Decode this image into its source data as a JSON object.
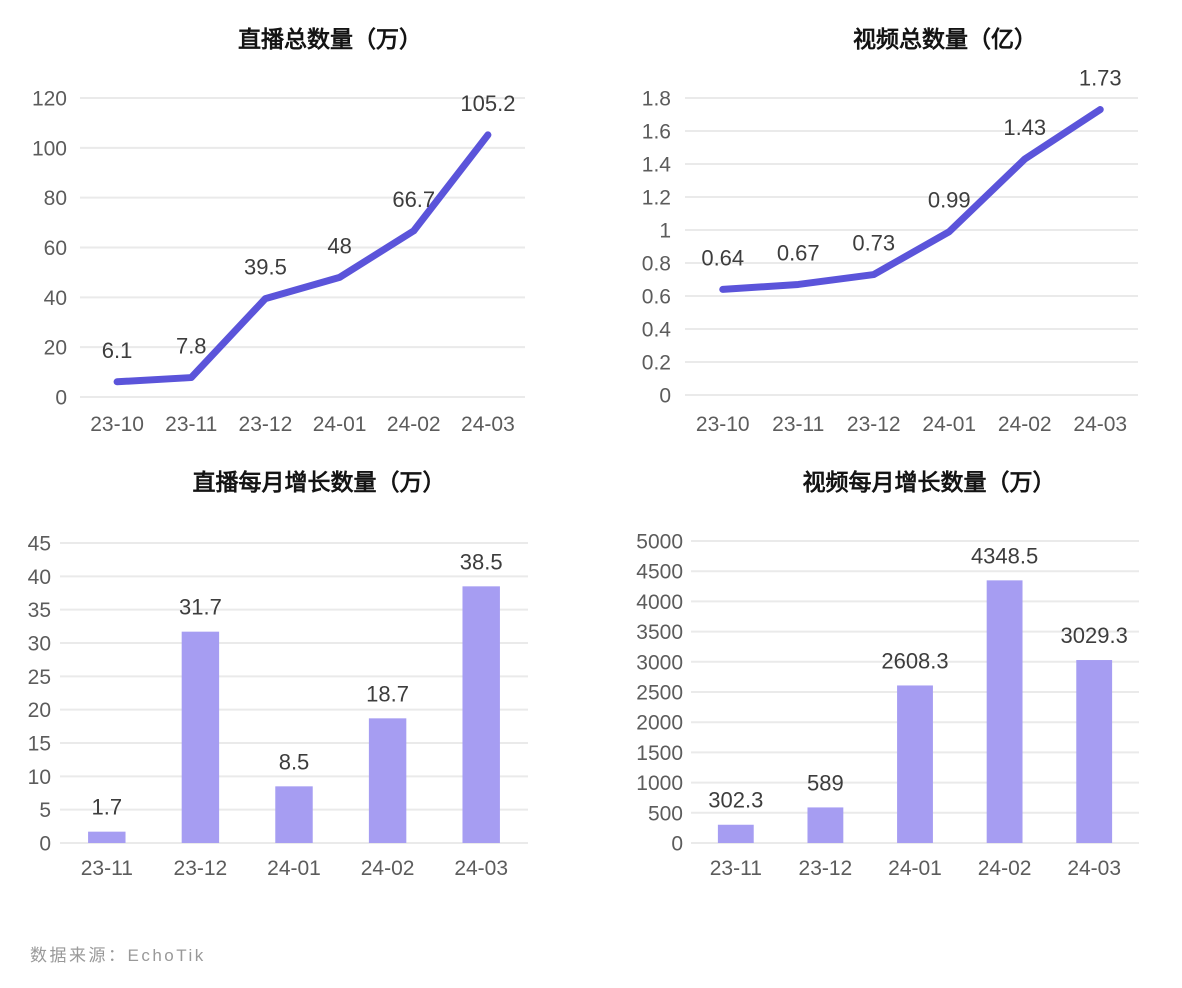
{
  "page": {
    "background": "#ffffff"
  },
  "colors": {
    "line_series": "#5B54DA",
    "bar_series": "#A69DF2",
    "gridline": "#EAEAEA",
    "tick_text": "#5C5C5C",
    "value_label_text": "#3D3D3D",
    "title_text": "#141414",
    "footer_text": "#999999"
  },
  "footer": {
    "text": "数据来源：EchoTik"
  },
  "chart_data": [
    {
      "type": "line",
      "title": "直播总数量（万）",
      "categories": [
        "23-10",
        "23-11",
        "23-12",
        "24-01",
        "24-02",
        "24-03"
      ],
      "values": [
        6.1,
        7.8,
        39.5,
        48,
        66.7,
        105.2
      ],
      "value_labels": [
        "6.1",
        "7.8",
        "39.5",
        "48",
        "66.7",
        "105.2"
      ],
      "xlabel": "",
      "ylabel": "",
      "ylim": [
        0,
        120
      ],
      "y_ticks": [
        "0",
        "20",
        "40",
        "60",
        "80",
        "100",
        "120"
      ],
      "grid": "horizontal",
      "legend": "none"
    },
    {
      "type": "line",
      "title": "视频总数量（亿）",
      "categories": [
        "23-10",
        "23-11",
        "23-12",
        "24-01",
        "24-02",
        "24-03"
      ],
      "values": [
        0.64,
        0.67,
        0.73,
        0.99,
        1.43,
        1.73
      ],
      "value_labels": [
        "0.64",
        "0.67",
        "0.73",
        "0.99",
        "1.43",
        "1.73"
      ],
      "xlabel": "",
      "ylabel": "",
      "ylim": [
        0,
        1.8
      ],
      "y_ticks": [
        "0",
        "0.2",
        "0.4",
        "0.6",
        "0.8",
        "1",
        "1.2",
        "1.4",
        "1.6",
        "1.8"
      ],
      "grid": "horizontal",
      "legend": "none"
    },
    {
      "type": "bar",
      "title": "直播每月增长数量（万）",
      "categories": [
        "23-11",
        "23-12",
        "24-01",
        "24-02",
        "24-03"
      ],
      "values": [
        1.7,
        31.7,
        8.5,
        18.7,
        38.5
      ],
      "value_labels": [
        "1.7",
        "31.7",
        "8.5",
        "18.7",
        "38.5"
      ],
      "xlabel": "",
      "ylabel": "",
      "ylim": [
        0,
        45
      ],
      "y_ticks": [
        "0",
        "5",
        "10",
        "15",
        "20",
        "25",
        "30",
        "35",
        "40",
        "45"
      ],
      "grid": "horizontal",
      "legend": "none"
    },
    {
      "type": "bar",
      "title": "视频每月增长数量（万）",
      "categories": [
        "23-11",
        "23-12",
        "24-01",
        "24-02",
        "24-03"
      ],
      "values": [
        302.3,
        589,
        2608.3,
        4348.5,
        3029.3
      ],
      "value_labels": [
        "302.3",
        "589",
        "2608.3",
        "4348.5",
        "3029.3"
      ],
      "xlabel": "",
      "ylabel": "",
      "ylim": [
        0,
        5000
      ],
      "y_ticks": [
        "0",
        "500",
        "1000",
        "1500",
        "2000",
        "2500",
        "3000",
        "3500",
        "4000",
        "4500",
        "5000"
      ],
      "grid": "horizontal",
      "legend": "none"
    }
  ]
}
